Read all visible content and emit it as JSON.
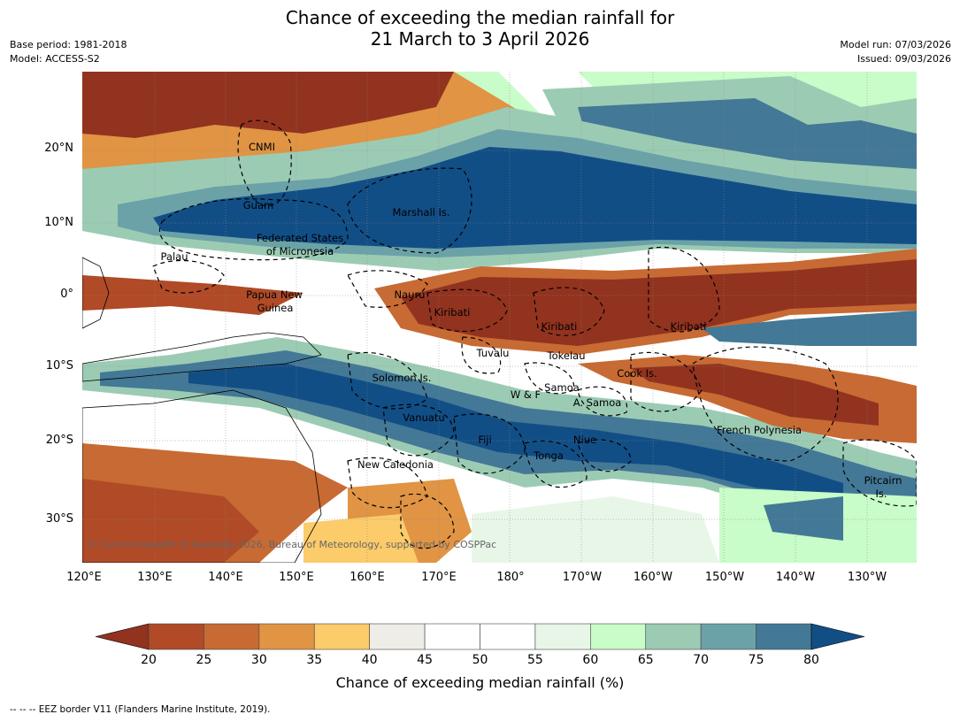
{
  "title_line1": "Chance of exceeding the median rainfall for",
  "title_line2": "21 March to 3 April 2026",
  "base_period": "Base period: 1981-2018",
  "model": "Model: ACCESS-S2",
  "model_run": "Model run: 07/03/2026",
  "issued": "Issued: 09/03/2026",
  "lat_labels": [
    "20°N",
    "10°N",
    "0°",
    "10°S",
    "20°S",
    "30°S"
  ],
  "lon_labels": [
    "120°E",
    "130°E",
    "140°E",
    "150°E",
    "160°E",
    "170°E",
    "180°",
    "170°W",
    "160°W",
    "150°W",
    "140°W",
    "130°W"
  ],
  "places": {
    "cnmi": "CNMI",
    "guam": "Guam",
    "marshall": "Marshall Is.",
    "fsm_1": "Federated States",
    "fsm_2": "of Micronesia",
    "palau": "Palau",
    "png_1": "Papua New",
    "png_2": "Guinea",
    "nauru": "Nauru",
    "kiribati_w": "Kiribati",
    "kiribati_c": "Kiribati",
    "kiribati_e": "Kiribati",
    "tuvalu": "Tuvalu",
    "tokelau": "Tokelau",
    "solomon": "Solomon Is.",
    "wf": "W & F",
    "samoa": "Samoa",
    "asamoa": "A. Samoa",
    "cook": "Cook Is.",
    "vanuatu": "Vanuatu",
    "fiji": "Fiji",
    "niue": "Niue",
    "tonga": "Tonga",
    "frpoly": "French Polynesia",
    "newcal": "New Caledonia",
    "pitcairn_1": "Pitcairn",
    "pitcairn_2": "Is."
  },
  "copyright": "© Commonwealth of Australia 2026, Bureau of Meteorology, supported by COSPPac",
  "colorbar": {
    "ticks": [
      "20",
      "25",
      "30",
      "35",
      "40",
      "45",
      "50",
      "55",
      "60",
      "65",
      "70",
      "75",
      "80"
    ],
    "colors": [
      "#92331f",
      "#b04a27",
      "#c86a33",
      "#e09444",
      "#fccb6a",
      "#efede8",
      "#ffffff",
      "#ffffff",
      "#e8f6e8",
      "#c8fcc8",
      "#9ccbb4",
      "#6ba2a8",
      "#437896",
      "#124e86"
    ],
    "label": "Chance of exceeding median rainfall (%)"
  },
  "footer": "-- -- -- EEZ border V11 (Flanders Marine Institute, 2019)."
}
